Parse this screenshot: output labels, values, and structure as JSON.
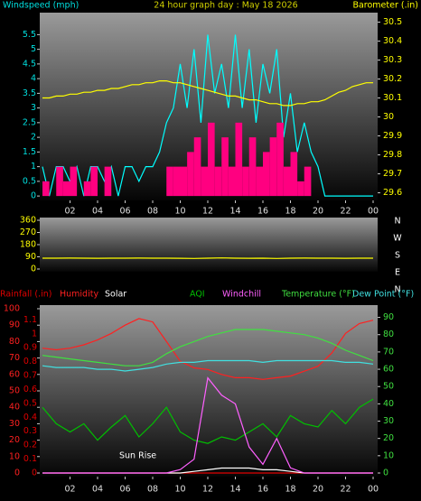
{
  "chart_data": [
    {
      "type": "line",
      "title": "24 hour graph day : May 18 2026",
      "y_label": "Windspeed (mph)",
      "y2_label": "Barometer (.in)",
      "x": [
        0,
        0.5,
        1,
        1.5,
        2,
        2.5,
        3,
        3.5,
        4,
        4.5,
        5,
        5.5,
        6,
        6.5,
        7,
        7.5,
        8,
        8.5,
        9,
        9.5,
        10,
        10.5,
        11,
        11.5,
        12,
        12.5,
        13,
        13.5,
        14,
        14.5,
        15,
        15.5,
        16,
        16.5,
        17,
        17.5,
        18,
        18.5,
        19,
        19.5,
        20,
        20.5,
        21,
        21.5,
        22,
        22.5,
        23,
        23.5,
        24
      ],
      "xlim": [
        0,
        24
      ],
      "xticks": [
        {
          "value": 2,
          "label": "02"
        },
        {
          "value": 4,
          "label": "04"
        },
        {
          "value": 6,
          "label": "06"
        },
        {
          "value": 8,
          "label": "08"
        },
        10,
        12,
        14,
        16,
        18,
        20,
        22,
        {
          "value": 24,
          "label": "00"
        }
      ],
      "ylim": [
        -0.15,
        6.25
      ],
      "yticks": [
        0,
        0.5,
        1,
        1.5,
        2,
        2.5,
        3,
        3.5,
        4,
        4.5,
        5,
        5.5
      ],
      "y2lim": [
        29.56,
        30.55
      ],
      "y2ticks": [
        29.6,
        29.7,
        29.8,
        29.9,
        30,
        30.1,
        30.2,
        30.3,
        30.4,
        30.5
      ],
      "series": [
        {
          "color": "#00ffff",
          "values": [
            1,
            0,
            1,
            1,
            0.5,
            1,
            0,
            1,
            1,
            0.5,
            1,
            0,
            1,
            1,
            0.5,
            1,
            1,
            1.5,
            2.5,
            3,
            4.5,
            3,
            5,
            2.5,
            5.5,
            3.5,
            4.5,
            3,
            5.5,
            3,
            5,
            2.5,
            4.5,
            3.5,
            5,
            2,
            3.5,
            1.5,
            2.5,
            1.5,
            1,
            0,
            0,
            0,
            0,
            0,
            0,
            0,
            0
          ]
        },
        {
          "color": "#ff0080",
          "style": "bar",
          "values": [
            0.5,
            0,
            1,
            0.5,
            1,
            0,
            0.5,
            1,
            0,
            1,
            0,
            0,
            0,
            0,
            0,
            0,
            0,
            0,
            1,
            1,
            1,
            1.5,
            2,
            1,
            2.5,
            1,
            2,
            1,
            2.5,
            1,
            2,
            1,
            1.5,
            2,
            2.5,
            1,
            1.5,
            0.5,
            1,
            0,
            0,
            0,
            0,
            0,
            0,
            0,
            0,
            0,
            0
          ]
        },
        {
          "color": "#ffff00",
          "axis": "y2",
          "values": [
            30.1,
            30.1,
            30.11,
            30.11,
            30.12,
            30.12,
            30.13,
            30.13,
            30.14,
            30.14,
            30.15,
            30.15,
            30.16,
            30.17,
            30.17,
            30.18,
            30.18,
            30.19,
            30.19,
            30.18,
            30.18,
            30.17,
            30.16,
            30.15,
            30.14,
            30.13,
            30.12,
            30.11,
            30.11,
            30.1,
            30.09,
            30.09,
            30.08,
            30.07,
            30.07,
            30.06,
            30.06,
            30.07,
            30.07,
            30.08,
            30.08,
            30.09,
            30.11,
            30.13,
            30.14,
            30.16,
            30.17,
            30.18,
            30.18
          ]
        }
      ]
    },
    {
      "type": "line",
      "x": [
        0,
        1,
        2,
        3,
        4,
        5,
        6,
        7,
        8,
        9,
        10,
        11,
        12,
        13,
        14,
        15,
        16,
        17,
        18,
        19,
        20,
        21,
        22,
        23,
        24
      ],
      "xlim": [
        0,
        24
      ],
      "ylim": [
        -20,
        380
      ],
      "yticks": [
        0,
        90,
        180,
        270,
        360
      ],
      "compass_labels": [
        "N",
        "W",
        "S",
        "E",
        "N"
      ],
      "series": [
        {
          "color": "#ffff00",
          "values": [
            80,
            80,
            81,
            80,
            79,
            80,
            80,
            81,
            80,
            80,
            79,
            78,
            80,
            82,
            80,
            79,
            80,
            78,
            80,
            81,
            80,
            80,
            79,
            80,
            80
          ]
        }
      ]
    },
    {
      "type": "line",
      "x": [
        0,
        1,
        2,
        3,
        4,
        5,
        6,
        7,
        8,
        9,
        10,
        11,
        12,
        13,
        14,
        15,
        16,
        17,
        18,
        19,
        20,
        21,
        22,
        23,
        24
      ],
      "xlim": [
        0,
        24
      ],
      "xticks": [
        {
          "value": 2,
          "label": "02"
        },
        {
          "value": 4,
          "label": "04"
        },
        {
          "value": 6,
          "label": "06"
        },
        {
          "value": 8,
          "label": "08"
        },
        10,
        12,
        14,
        16,
        18,
        20,
        22,
        {
          "value": 24,
          "label": "00"
        }
      ],
      "ylim": [
        0,
        100
      ],
      "yticks": [
        0,
        10,
        20,
        30,
        40,
        50,
        60,
        70,
        80,
        90,
        100
      ],
      "y2lim": [
        0,
        95
      ],
      "y2ticks": [
        0,
        10,
        20,
        30,
        40,
        50,
        60,
        70,
        80,
        90
      ],
      "y3lim": [
        0,
        1.18
      ],
      "y3ticks": [
        0,
        0.1,
        0.2,
        0.3,
        0.4,
        0.5,
        0.6,
        0.7,
        0.8,
        0.9,
        1,
        1.1
      ],
      "annotation": "Sun Rise",
      "series": [
        {
          "name": "Rainfall (.in)",
          "color": "#e00000",
          "axis": "y3",
          "values": [
            0,
            0,
            0,
            0,
            0,
            0,
            0,
            0,
            0,
            0,
            0,
            0,
            0,
            0,
            0,
            0,
            0,
            0,
            0,
            0,
            0,
            0,
            0,
            0,
            0
          ]
        },
        {
          "name": "Humidity",
          "color": "#ff2020",
          "values": [
            76,
            75,
            76,
            78,
            81,
            85,
            90,
            94,
            92,
            80,
            68,
            64,
            63,
            60,
            58,
            58,
            57,
            58,
            59,
            62,
            65,
            73,
            85,
            91,
            93
          ]
        },
        {
          "name": "Solar",
          "color": "#ffffff",
          "values": [
            0,
            0,
            0,
            0,
            0,
            0,
            0,
            0,
            0,
            0,
            0,
            1,
            2,
            3,
            3,
            3,
            2,
            2,
            1,
            0,
            0,
            0,
            0,
            0,
            0
          ]
        },
        {
          "name": "AQI",
          "color": "#00c000",
          "values": [
            40,
            30,
            25,
            30,
            20,
            28,
            35,
            22,
            30,
            40,
            25,
            20,
            18,
            22,
            20,
            25,
            30,
            22,
            35,
            30,
            28,
            38,
            30,
            40,
            45
          ]
        },
        {
          "name": "Windchill",
          "color": "#ff60ff",
          "axis": "y2",
          "values": [
            0,
            0,
            0,
            0,
            0,
            0,
            0,
            0,
            0,
            0,
            2,
            8,
            55,
            45,
            40,
            15,
            5,
            20,
            3,
            0,
            0,
            0,
            0,
            0,
            0
          ]
        },
        {
          "name": "Temperature (°F)",
          "color": "#40e040",
          "axis": "y2",
          "values": [
            68,
            67,
            66,
            65,
            64,
            63,
            62,
            62,
            64,
            69,
            73,
            76,
            79,
            81,
            83,
            83,
            83,
            82,
            81,
            80,
            78,
            75,
            71,
            68,
            65
          ]
        },
        {
          "name": "Dew Point (°F)",
          "color": "#40e0e0",
          "axis": "y2",
          "values": [
            62,
            61,
            61,
            61,
            60,
            60,
            59,
            60,
            61,
            63,
            64,
            64,
            65,
            65,
            65,
            65,
            64,
            65,
            65,
            65,
            65,
            65,
            64,
            64,
            63
          ]
        }
      ]
    }
  ]
}
